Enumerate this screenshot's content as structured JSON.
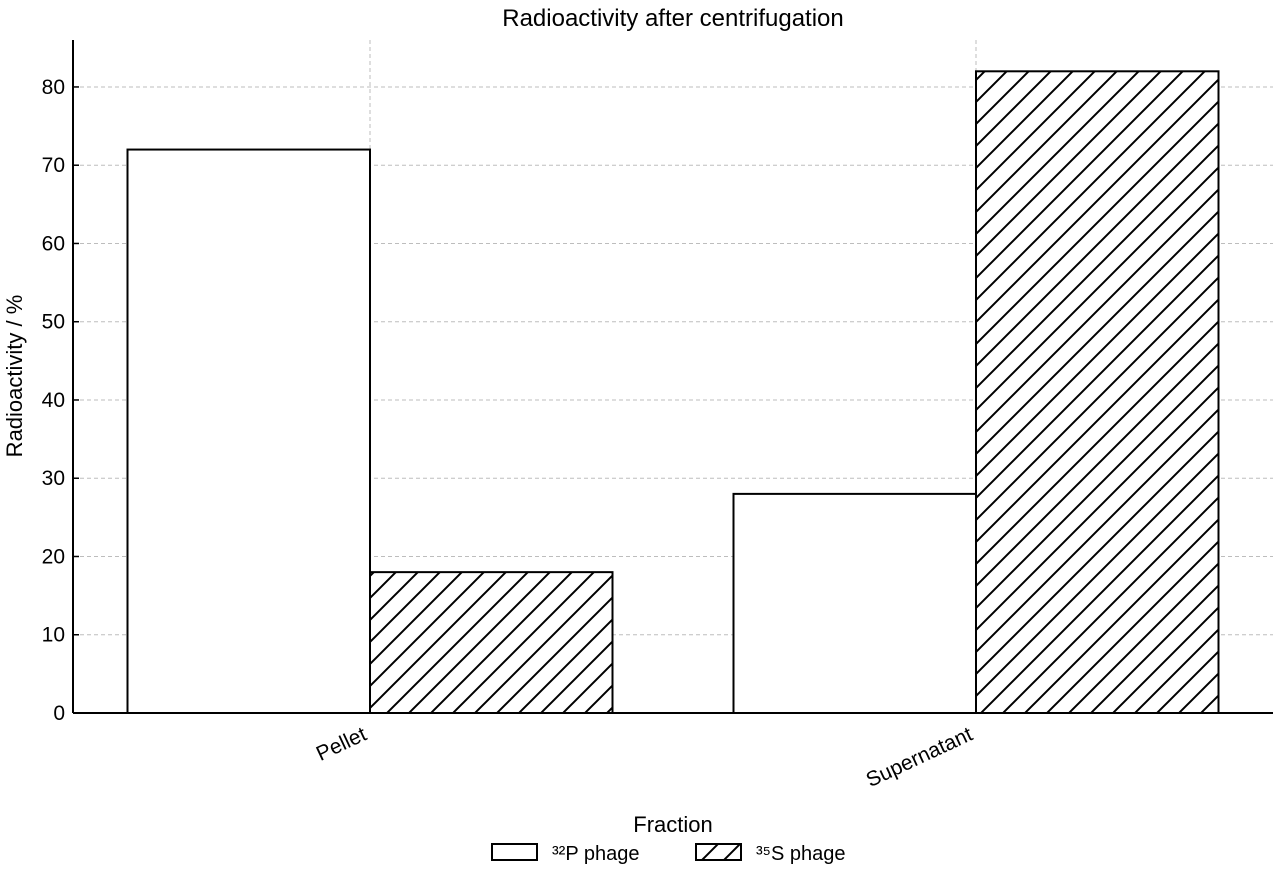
{
  "chart_data": {
    "type": "bar",
    "title": "Radioactivity after centrifugation",
    "xlabel": "Fraction",
    "ylabel": "Radioactivity / %",
    "categories": [
      "Pellet",
      "Supernatant"
    ],
    "series": [
      {
        "name": "³²P phage",
        "values": [
          72,
          28
        ],
        "pattern": "none"
      },
      {
        "name": "³⁵S phage",
        "values": [
          18,
          82
        ],
        "pattern": "diagonal-hatch"
      }
    ],
    "ylim": [
      0,
      86
    ],
    "yticks": [
      0,
      10,
      20,
      30,
      40,
      50,
      60,
      70,
      80
    ],
    "grid": true,
    "legend_position": "bottom-center",
    "colors": {
      "bar_fill": "#ffffff",
      "bar_edge": "#000000",
      "grid": "#bdbdbd"
    }
  }
}
